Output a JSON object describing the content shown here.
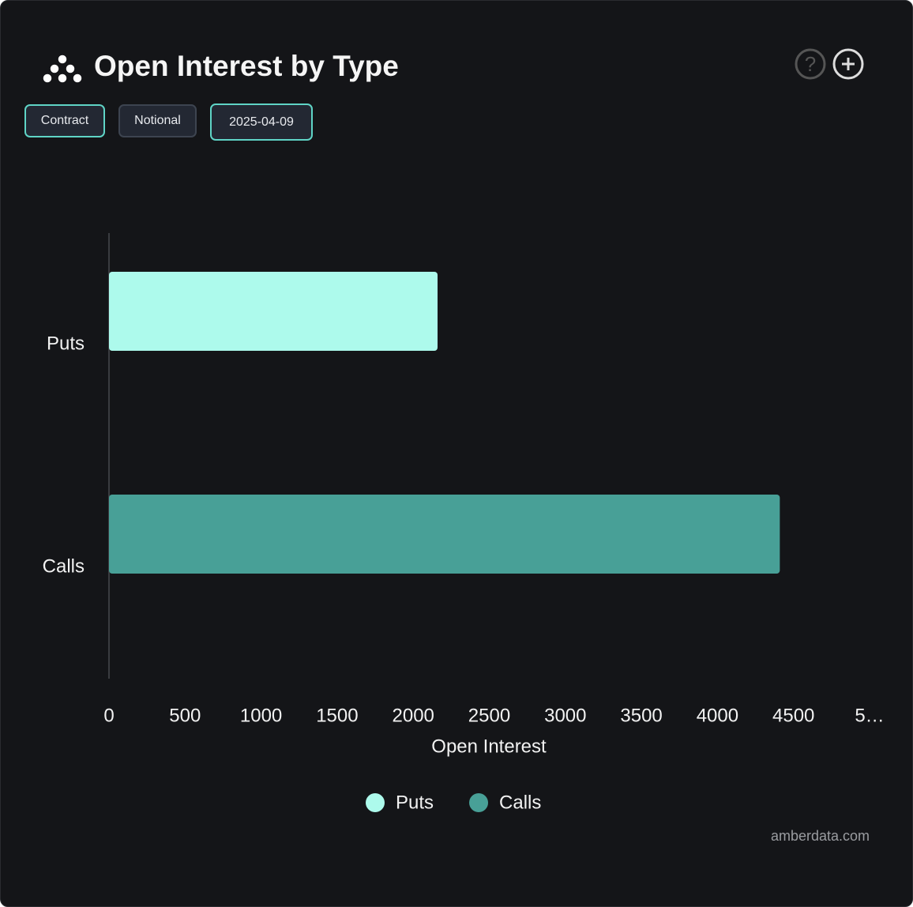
{
  "header": {
    "title": "Open Interest by Type"
  },
  "buttons": [
    "Contract",
    "Notional",
    "2025-04-09"
  ],
  "footer": "amberdata.com",
  "chart_data": {
    "type": "bar",
    "orientation": "horizontal",
    "categories": [
      "Puts",
      "Calls"
    ],
    "series": [
      {
        "name": "Puts",
        "color": "#adfaec",
        "values": [
          2160,
          null
        ]
      },
      {
        "name": "Calls",
        "color": "#48a097",
        "values": [
          null,
          4410
        ]
      }
    ],
    "xlabel": "Open Interest",
    "xlim": [
      0,
      5000
    ],
    "xticks": [
      0,
      500,
      1000,
      1500,
      2000,
      2500,
      3000,
      3500,
      4000,
      4500,
      {
        "value": 5000,
        "label": "5…"
      }
    ],
    "grid": false,
    "legend": "bottom"
  }
}
